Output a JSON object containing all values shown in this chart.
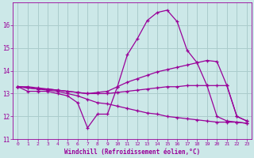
{
  "xlabel": "Windchill (Refroidissement éolien,°C)",
  "bg_color": "#cce8e8",
  "line_color": "#990099",
  "grid_color": "#aacccc",
  "x": [
    0,
    1,
    2,
    3,
    4,
    5,
    6,
    7,
    8,
    9,
    10,
    11,
    12,
    13,
    14,
    15,
    16,
    17,
    18,
    19,
    20,
    21,
    22,
    23
  ],
  "line1": [
    13.3,
    13.1,
    13.1,
    13.1,
    13.0,
    12.9,
    12.6,
    11.5,
    12.1,
    12.1,
    13.3,
    14.7,
    15.4,
    16.2,
    16.55,
    16.65,
    16.15,
    14.9,
    14.35,
    13.35,
    12.0,
    11.8,
    11.75,
    11.7
  ],
  "line2": [
    13.3,
    13.25,
    13.2,
    13.2,
    13.15,
    13.1,
    13.05,
    13.0,
    13.05,
    13.1,
    13.3,
    13.5,
    13.65,
    13.8,
    13.95,
    14.05,
    14.15,
    14.25,
    14.35,
    14.45,
    14.4,
    13.35,
    12.0,
    11.8
  ],
  "line3": [
    13.3,
    13.3,
    13.25,
    13.2,
    13.15,
    13.1,
    13.05,
    13.0,
    13.0,
    13.0,
    13.05,
    13.1,
    13.15,
    13.2,
    13.25,
    13.3,
    13.3,
    13.35,
    13.35,
    13.35,
    13.35,
    13.35,
    12.0,
    11.8
  ],
  "line4": [
    13.3,
    13.25,
    13.2,
    13.15,
    13.1,
    13.0,
    12.9,
    12.75,
    12.6,
    12.55,
    12.45,
    12.35,
    12.25,
    12.15,
    12.1,
    12.0,
    11.95,
    11.9,
    11.85,
    11.8,
    11.75,
    11.75,
    11.75,
    11.7
  ],
  "ylim": [
    11,
    17
  ],
  "xlim_min": -0.5,
  "xlim_max": 23.5,
  "yticks": [
    11,
    12,
    13,
    14,
    15,
    16
  ],
  "xticks": [
    0,
    1,
    2,
    3,
    4,
    5,
    6,
    7,
    8,
    9,
    10,
    11,
    12,
    13,
    14,
    15,
    16,
    17,
    18,
    19,
    20,
    21,
    22,
    23
  ]
}
